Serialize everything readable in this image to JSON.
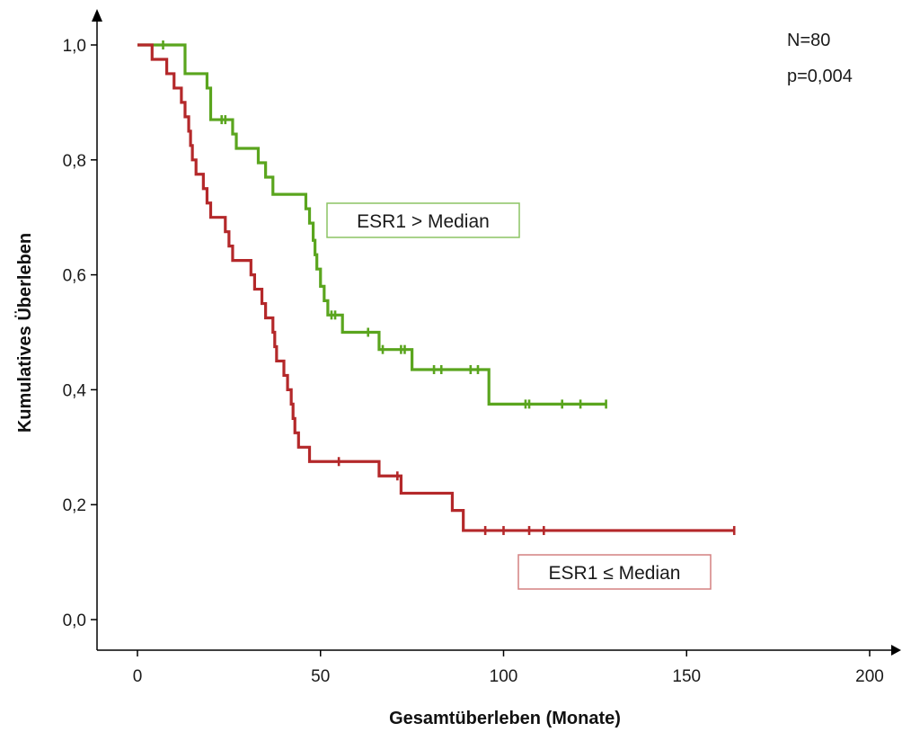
{
  "chart_data": {
    "type": "line",
    "subtype": "kaplan-meier step",
    "xlabel": "Gesamtüberleben (Monate)",
    "ylabel": "Kumulatives Überleben",
    "xlim": [
      0,
      200
    ],
    "ylim": [
      0,
      1
    ],
    "x_ticks": [
      0,
      50,
      100,
      150,
      200
    ],
    "x_tick_labels": [
      "0",
      "50",
      "100",
      "150",
      "200"
    ],
    "y_ticks": [
      0,
      0.2,
      0.4,
      0.6,
      0.8,
      1.0
    ],
    "y_tick_labels": [
      "0,0",
      "0,2",
      "0,4",
      "0,6",
      "0,8",
      "1,0"
    ],
    "grid": false,
    "annotations": {
      "n": "N=80",
      "p": "p=0,004"
    },
    "series": [
      {
        "name": "ESR1 > Median",
        "color": "#5aa51e",
        "steps": [
          [
            0,
            1.0
          ],
          [
            13,
            0.95
          ],
          [
            19,
            0.925
          ],
          [
            20,
            0.87
          ],
          [
            26,
            0.845
          ],
          [
            27,
            0.82
          ],
          [
            33,
            0.795
          ],
          [
            35,
            0.77
          ],
          [
            37,
            0.74
          ],
          [
            46,
            0.715
          ],
          [
            47,
            0.69
          ],
          [
            48,
            0.66
          ],
          [
            48.5,
            0.635
          ],
          [
            49,
            0.61
          ],
          [
            50,
            0.58
          ],
          [
            51,
            0.555
          ],
          [
            52,
            0.53
          ],
          [
            56,
            0.5
          ],
          [
            66,
            0.47
          ],
          [
            75,
            0.435
          ],
          [
            96,
            0.375
          ],
          [
            128,
            0.375
          ]
        ],
        "censored": [
          [
            7,
            1.0
          ],
          [
            23,
            0.87
          ],
          [
            24,
            0.87
          ],
          [
            53,
            0.53
          ],
          [
            54,
            0.53
          ],
          [
            63,
            0.5
          ],
          [
            67,
            0.47
          ],
          [
            72,
            0.47
          ],
          [
            73,
            0.47
          ],
          [
            81,
            0.435
          ],
          [
            83,
            0.435
          ],
          [
            91,
            0.435
          ],
          [
            93,
            0.435
          ],
          [
            106,
            0.375
          ],
          [
            107,
            0.375
          ],
          [
            116,
            0.375
          ],
          [
            121,
            0.375
          ],
          [
            128,
            0.375
          ]
        ]
      },
      {
        "name": "ESR1 ≤ Median",
        "color": "#b4282a",
        "steps": [
          [
            0,
            1.0
          ],
          [
            4,
            0.975
          ],
          [
            8,
            0.95
          ],
          [
            10,
            0.925
          ],
          [
            12,
            0.9
          ],
          [
            13,
            0.875
          ],
          [
            14,
            0.85
          ],
          [
            14.5,
            0.825
          ],
          [
            15,
            0.8
          ],
          [
            16,
            0.775
          ],
          [
            18,
            0.75
          ],
          [
            19,
            0.725
          ],
          [
            20,
            0.7
          ],
          [
            24,
            0.675
          ],
          [
            25,
            0.65
          ],
          [
            26,
            0.625
          ],
          [
            31,
            0.6
          ],
          [
            32,
            0.575
          ],
          [
            34,
            0.55
          ],
          [
            35,
            0.525
          ],
          [
            37,
            0.5
          ],
          [
            37.5,
            0.475
          ],
          [
            38,
            0.45
          ],
          [
            40,
            0.425
          ],
          [
            41,
            0.4
          ],
          [
            42,
            0.375
          ],
          [
            42.5,
            0.35
          ],
          [
            43,
            0.325
          ],
          [
            44,
            0.3
          ],
          [
            47,
            0.275
          ],
          [
            66,
            0.25
          ],
          [
            72,
            0.22
          ],
          [
            86,
            0.19
          ],
          [
            89,
            0.155
          ],
          [
            163,
            0.155
          ]
        ],
        "censored": [
          [
            55,
            0.275
          ],
          [
            71,
            0.25
          ],
          [
            95,
            0.155
          ],
          [
            100,
            0.155
          ],
          [
            107,
            0.155
          ],
          [
            111,
            0.155
          ],
          [
            163,
            0.155
          ]
        ]
      }
    ]
  }
}
